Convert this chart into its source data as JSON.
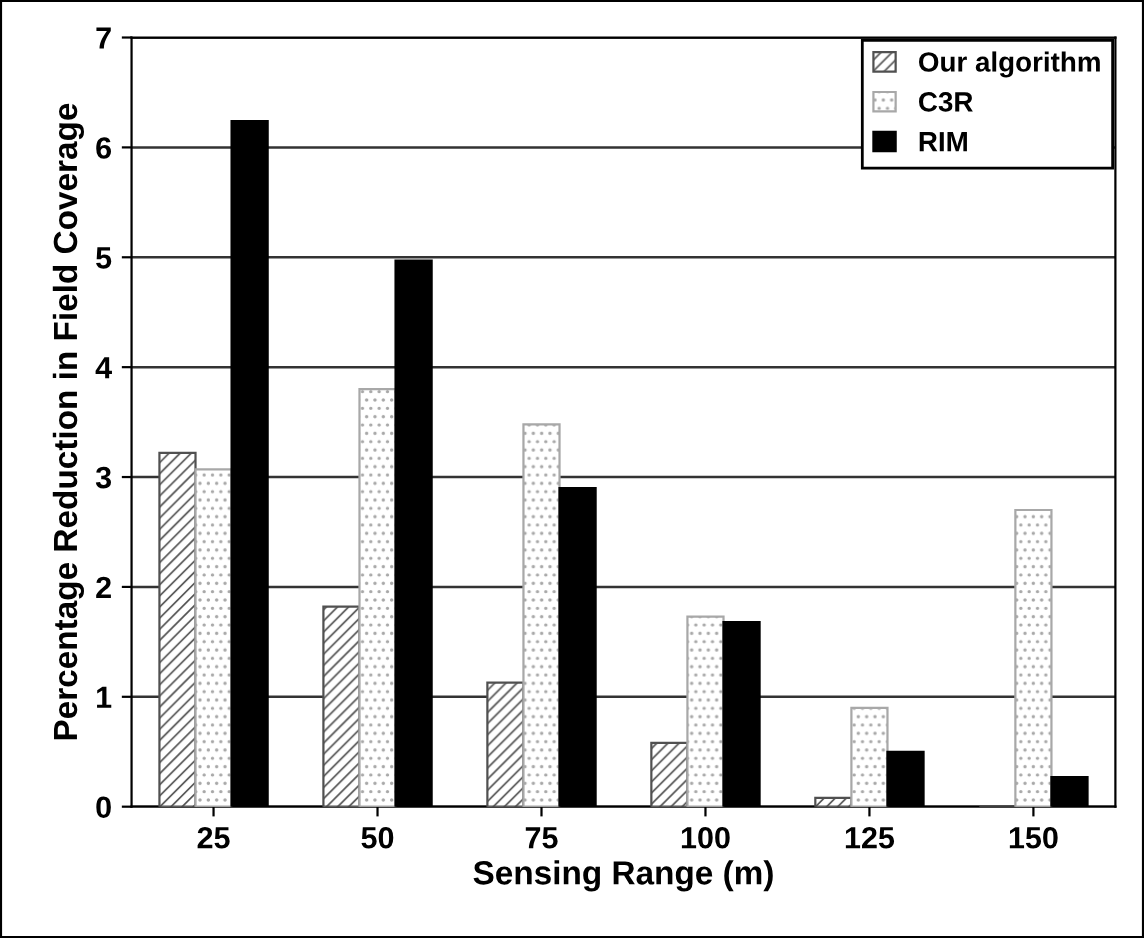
{
  "chart_data": {
    "type": "bar",
    "xlabel": "Sensing Range (m)",
    "ylabel": "Percentage Reduction in Field Coverage",
    "categories": [
      "25",
      "50",
      "75",
      "100",
      "125",
      "150"
    ],
    "series": [
      {
        "name": "Our algorithm",
        "color": "#505050",
        "values": [
          3.22,
          1.82,
          1.13,
          0.58,
          0.08,
          0
        ]
      },
      {
        "name": "C3R",
        "color": "#a8a8a8",
        "values": [
          3.07,
          3.8,
          3.48,
          1.73,
          0.9,
          2.7
        ]
      },
      {
        "name": "RIM",
        "color": "#000000",
        "values": [
          6.24,
          4.97,
          2.9,
          1.68,
          0.5,
          0.27
        ]
      }
    ],
    "ylim": [
      0,
      7
    ],
    "yticks": [
      0,
      1,
      2,
      3,
      4,
      5,
      6,
      7
    ],
    "grid": "y",
    "legend": "top right"
  }
}
